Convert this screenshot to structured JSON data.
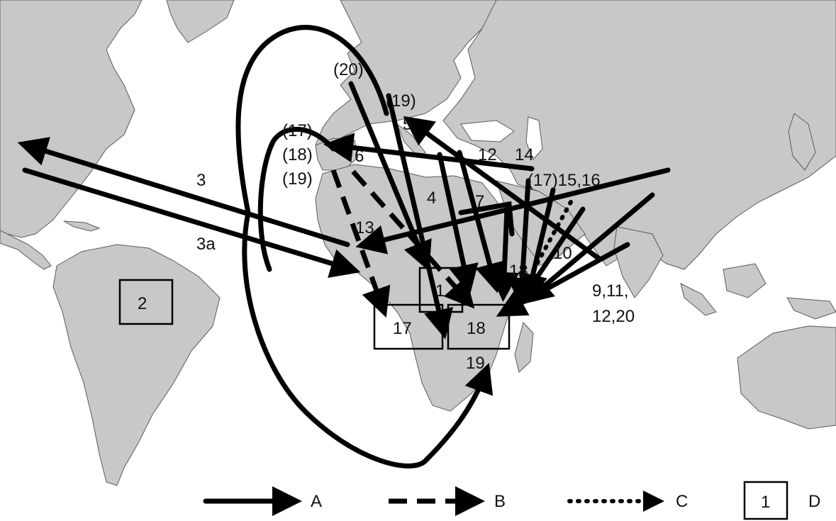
{
  "map": {
    "route_labels": {
      "r20": "(20)",
      "r19n": "(19)",
      "r5": "5",
      "r17w": "(17)",
      "r18w": "(18)",
      "r19w": "(19)",
      "r6": "6",
      "r12": "12",
      "r14": "14",
      "r17e": "(17)15,16",
      "r3": "3",
      "r3a": "3a",
      "r4": "4",
      "r7": "7",
      "r13": "13",
      "r10": "10",
      "r18e": "18",
      "r9": "9,11,",
      "r9b": "12,20",
      "r19s": "19"
    },
    "boxes": {
      "b1": "1",
      "b2": "2",
      "b17": "17",
      "b18": "18"
    }
  },
  "legend": {
    "a": "A",
    "b": "B",
    "c": "C",
    "d_box": "1",
    "d": "D"
  }
}
